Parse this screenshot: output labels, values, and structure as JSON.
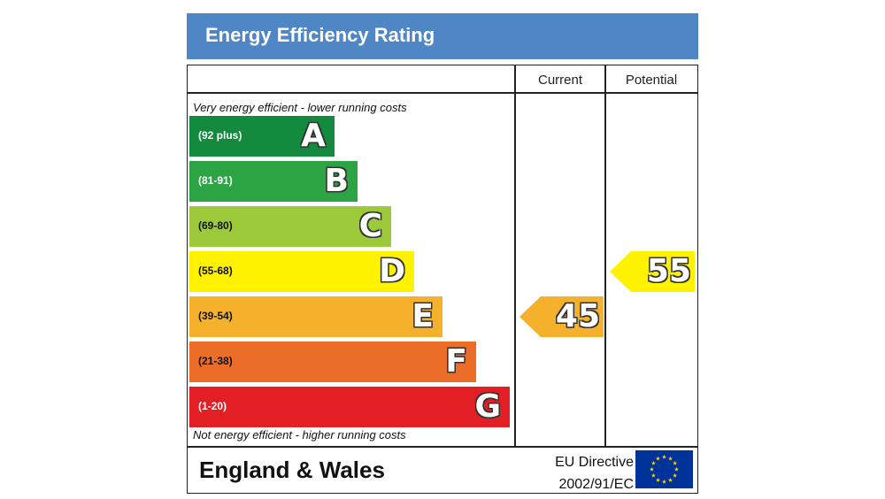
{
  "header": {
    "title": "Energy Efficiency Rating"
  },
  "columns": {
    "current": "Current",
    "potential": "Potential"
  },
  "notes": {
    "top": "Very energy efficient - lower running costs",
    "bottom": "Not energy efficient - higher running costs"
  },
  "footer": {
    "region": "England & Wales",
    "directive_line1": "EU Directive",
    "directive_line2": "2002/91/EC",
    "flag_icon": "eu-flag-icon"
  },
  "chart_data": {
    "type": "bar",
    "title": "Energy Efficiency Rating",
    "bands": [
      {
        "letter": "A",
        "range": "(92 plus)",
        "color": "#138a3e",
        "range_color": "#ffffff"
      },
      {
        "letter": "B",
        "range": "(81-91)",
        "color": "#2da444",
        "range_color": "#ffffff"
      },
      {
        "letter": "C",
        "range": "(69-80)",
        "color": "#9cca3b",
        "range_color": "#111111"
      },
      {
        "letter": "D",
        "range": "(55-68)",
        "color": "#fff200",
        "range_color": "#111111"
      },
      {
        "letter": "E",
        "range": "(39-54)",
        "color": "#f6b12c",
        "range_color": "#111111"
      },
      {
        "letter": "F",
        "range": "(21-38)",
        "color": "#ec6d28",
        "range_color": "#111111"
      },
      {
        "letter": "G",
        "range": "(1-20)",
        "color": "#e31f26",
        "range_color": "#ffffff"
      }
    ],
    "ratings": [
      {
        "column": "Current",
        "value": 45,
        "band": "E",
        "color": "#f6b12c"
      },
      {
        "column": "Potential",
        "value": 55,
        "band": "D",
        "color": "#fff200"
      }
    ]
  }
}
